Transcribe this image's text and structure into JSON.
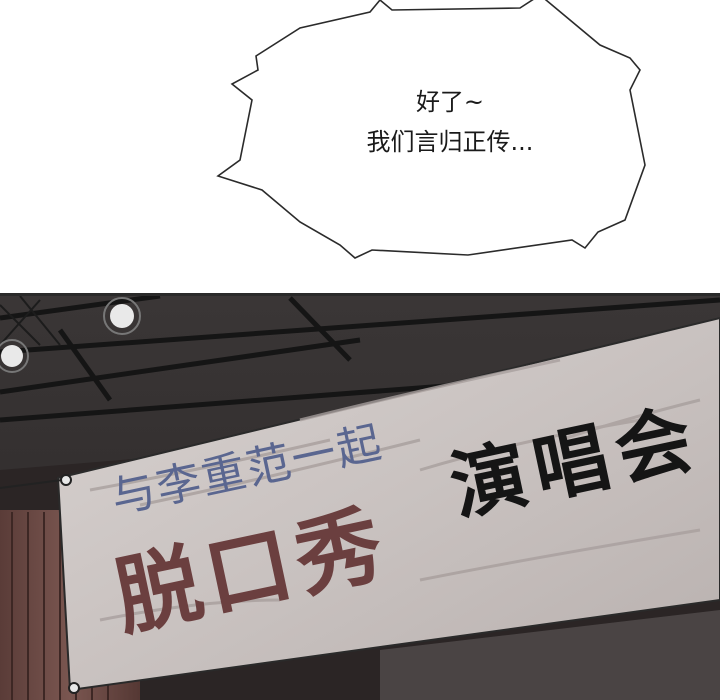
{
  "speech_bubble": {
    "line1": "好了~",
    "line2": "我们言归正传..."
  },
  "banner": {
    "line1": "与李重范一起",
    "line2": "脱口秀",
    "line3": "演唱会"
  },
  "colors": {
    "banner_subtitle": "#5a6690",
    "banner_title_main": "#6b3f3f",
    "banner_title_side": "#151515",
    "curtain": "#6a4a44"
  }
}
